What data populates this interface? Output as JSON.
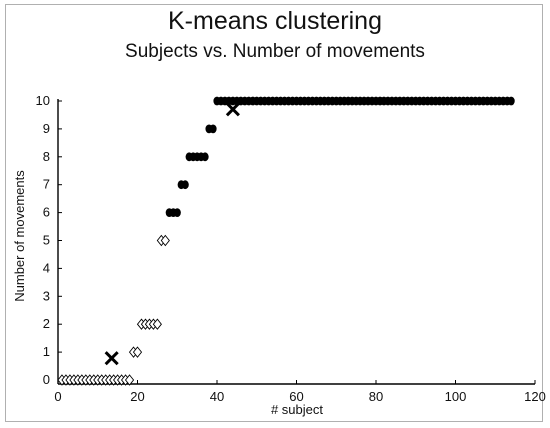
{
  "chart_data": {
    "type": "scatter",
    "title": "K-means clustering",
    "subtitle": "Subjects vs. Number of movements",
    "xlabel": "# subject",
    "ylabel": "Number of movements",
    "xlim": [
      0,
      120
    ],
    "ylim": [
      0,
      10
    ],
    "xticks": [
      0,
      20,
      40,
      60,
      80,
      100,
      120
    ],
    "yticks": [
      0,
      1,
      2,
      3,
      4,
      5,
      6,
      7,
      8,
      9,
      10
    ],
    "grid": false,
    "series": [
      {
        "marker": "open-diamond",
        "color": "#000000",
        "points": [
          [
            1,
            0
          ],
          [
            2,
            0
          ],
          [
            3,
            0
          ],
          [
            4,
            0
          ],
          [
            5,
            0
          ],
          [
            6,
            0
          ],
          [
            7,
            0
          ],
          [
            8,
            0
          ],
          [
            9,
            0
          ],
          [
            10,
            0
          ],
          [
            11,
            0
          ],
          [
            12,
            0
          ],
          [
            13,
            0
          ],
          [
            14,
            0
          ],
          [
            15,
            0
          ],
          [
            16,
            0
          ],
          [
            17,
            0
          ],
          [
            18,
            0
          ],
          [
            19,
            1
          ],
          [
            20,
            1
          ],
          [
            21,
            2
          ],
          [
            22,
            2
          ],
          [
            23,
            2
          ],
          [
            24,
            2
          ],
          [
            25,
            2
          ],
          [
            26,
            5
          ],
          [
            27,
            5
          ]
        ]
      },
      {
        "marker": "filled-circle",
        "color": "#000000",
        "points": [
          [
            28,
            6
          ],
          [
            29,
            6
          ],
          [
            30,
            6
          ],
          [
            31,
            7
          ],
          [
            32,
            7
          ],
          [
            33,
            8
          ],
          [
            34,
            8
          ],
          [
            35,
            8
          ],
          [
            36,
            8
          ],
          [
            37,
            8
          ],
          [
            38,
            9
          ],
          [
            39,
            9
          ],
          [
            40,
            10
          ],
          [
            41,
            10
          ],
          [
            42,
            10
          ],
          [
            43,
            10
          ],
          [
            44,
            10
          ],
          [
            45,
            10
          ],
          [
            46,
            10
          ],
          [
            47,
            10
          ],
          [
            48,
            10
          ],
          [
            49,
            10
          ],
          [
            50,
            10
          ],
          [
            51,
            10
          ],
          [
            52,
            10
          ],
          [
            53,
            10
          ],
          [
            54,
            10
          ],
          [
            55,
            10
          ],
          [
            56,
            10
          ],
          [
            57,
            10
          ],
          [
            58,
            10
          ],
          [
            59,
            10
          ],
          [
            60,
            10
          ],
          [
            61,
            10
          ],
          [
            62,
            10
          ],
          [
            63,
            10
          ],
          [
            64,
            10
          ],
          [
            65,
            10
          ],
          [
            66,
            10
          ],
          [
            67,
            10
          ],
          [
            68,
            10
          ],
          [
            69,
            10
          ],
          [
            70,
            10
          ],
          [
            71,
            10
          ],
          [
            72,
            10
          ],
          [
            73,
            10
          ],
          [
            74,
            10
          ],
          [
            75,
            10
          ],
          [
            76,
            10
          ],
          [
            77,
            10
          ],
          [
            78,
            10
          ],
          [
            79,
            10
          ],
          [
            80,
            10
          ],
          [
            81,
            10
          ],
          [
            82,
            10
          ],
          [
            83,
            10
          ],
          [
            84,
            10
          ],
          [
            85,
            10
          ],
          [
            86,
            10
          ],
          [
            87,
            10
          ],
          [
            88,
            10
          ],
          [
            89,
            10
          ],
          [
            90,
            10
          ],
          [
            91,
            10
          ],
          [
            92,
            10
          ],
          [
            93,
            10
          ],
          [
            94,
            10
          ],
          [
            95,
            10
          ],
          [
            96,
            10
          ],
          [
            97,
            10
          ],
          [
            98,
            10
          ],
          [
            99,
            10
          ],
          [
            100,
            10
          ],
          [
            101,
            10
          ],
          [
            102,
            10
          ],
          [
            103,
            10
          ],
          [
            104,
            10
          ],
          [
            105,
            10
          ],
          [
            106,
            10
          ],
          [
            107,
            10
          ],
          [
            108,
            10
          ],
          [
            109,
            10
          ],
          [
            110,
            10
          ],
          [
            111,
            10
          ],
          [
            112,
            10
          ],
          [
            113,
            10
          ],
          [
            114,
            10
          ]
        ]
      },
      {
        "marker": "x",
        "color": "#000000",
        "points": [
          [
            13.5,
            0.78
          ],
          [
            44,
            9.7
          ]
        ]
      }
    ]
  }
}
